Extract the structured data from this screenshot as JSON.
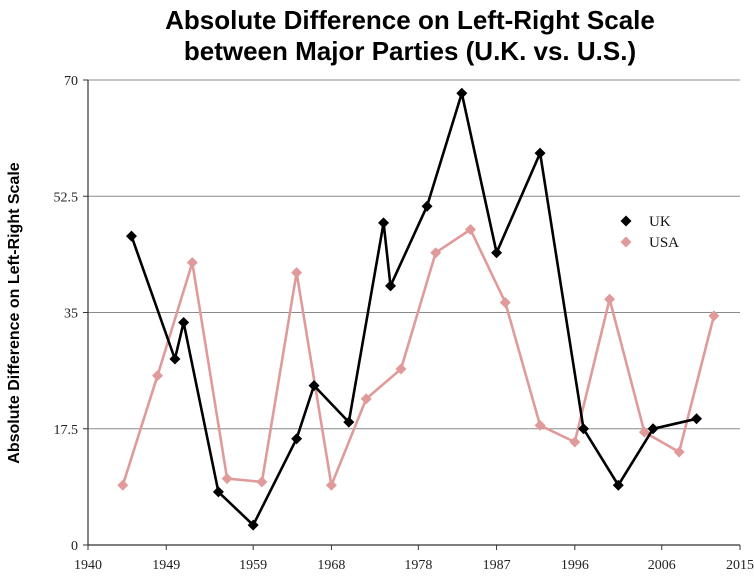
{
  "chart_data": {
    "type": "line",
    "title": "Absolute Difference on Left-Right Scale",
    "subtitle": "between Major Parties (U.K. vs. U.S.)",
    "xlabel": "",
    "ylabel": "Absolute Difference on Left-Right Scale",
    "xlim": [
      1940,
      2015
    ],
    "ylim": [
      0,
      70
    ],
    "x_ticks": [
      1940,
      1949,
      1959,
      1968,
      1978,
      1987,
      1996,
      2006,
      2015
    ],
    "y_ticks": [
      0,
      17.5,
      35,
      52.5,
      70
    ],
    "y_tick_labels": [
      "0",
      "17.5",
      "35",
      "52.5",
      "70"
    ],
    "grid": "horizontal",
    "legend_position": "right",
    "series": [
      {
        "name": "UK",
        "color": "#000000",
        "points": [
          [
            1945,
            46.5
          ],
          [
            1950,
            28
          ],
          [
            1951,
            33.5
          ],
          [
            1955,
            8
          ],
          [
            1959,
            3
          ],
          [
            1964,
            16
          ],
          [
            1966,
            24
          ],
          [
            1970,
            18.5
          ],
          [
            1974,
            48.5
          ],
          [
            1974.8,
            39
          ],
          [
            1979,
            51
          ],
          [
            1983,
            68
          ],
          [
            1987,
            44
          ],
          [
            1992,
            59
          ],
          [
            1997,
            17.5
          ],
          [
            2001,
            9
          ],
          [
            2005,
            17.5
          ],
          [
            2010,
            19
          ]
        ]
      },
      {
        "name": "USA",
        "color": "#e19a9a",
        "points": [
          [
            1944,
            9
          ],
          [
            1948,
            25.5
          ],
          [
            1952,
            42.5
          ],
          [
            1956,
            10
          ],
          [
            1960,
            9.5
          ],
          [
            1964,
            41
          ],
          [
            1968,
            9
          ],
          [
            1972,
            22
          ],
          [
            1976,
            26.5
          ],
          [
            1980,
            44
          ],
          [
            1984,
            47.5
          ],
          [
            1988,
            36.5
          ],
          [
            1992,
            18
          ],
          [
            1996,
            15.5
          ],
          [
            2000,
            37
          ],
          [
            2004,
            17
          ],
          [
            2008,
            14
          ],
          [
            2012,
            34.5
          ]
        ]
      }
    ]
  }
}
